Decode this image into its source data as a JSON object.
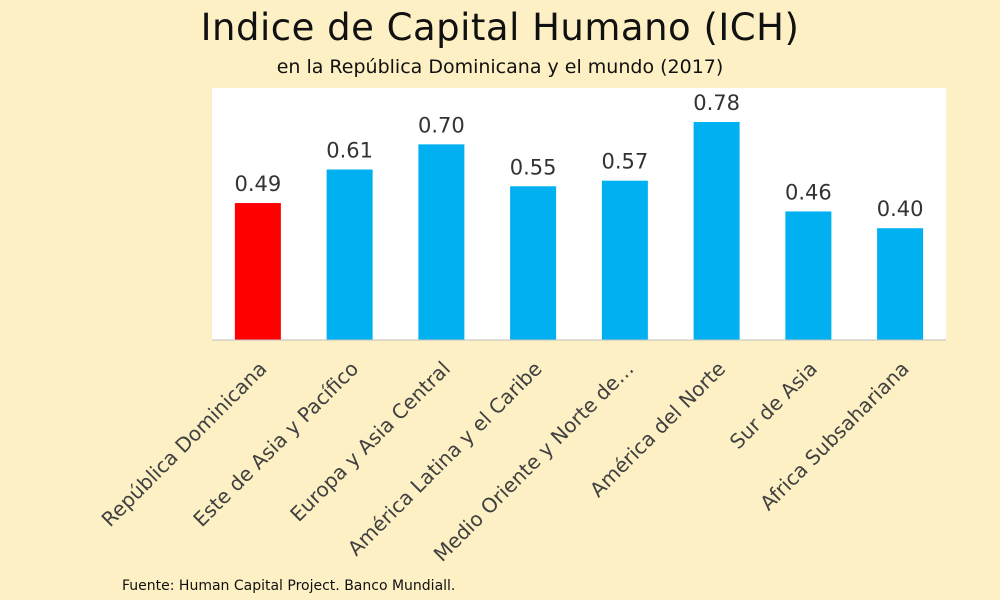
{
  "title": "Indice de Capital Humano (ICH)",
  "subtitle": "en la República Dominicana y el mundo (2017)",
  "source": "Fuente: Human Capital Project. Banco Mundiall.",
  "colors": {
    "highlight": "#ff0000",
    "bar": "#00b0f0",
    "plot_bg": "#ffffff",
    "page_bg": "#fdf0c4"
  },
  "chart_data": {
    "type": "bar",
    "title": "Indice de Capital Humano (ICH)",
    "subtitle": "en la República Dominicana y el mundo (2017)",
    "categories": [
      "República Dominicana",
      "Este de Asia y Pacífico",
      "Europa y Asia Central",
      "América Latina y el Caribe",
      "Medio Oriente y Norte de…",
      "América del Norte",
      "Sur de Asia",
      "Africa Subsahariana"
    ],
    "values": [
      0.49,
      0.61,
      0.7,
      0.55,
      0.57,
      0.78,
      0.46,
      0.4
    ],
    "value_labels": [
      "0.49",
      "0.61",
      "0.70",
      "0.55",
      "0.57",
      "0.78",
      "0.46",
      "0.40"
    ],
    "highlight_index": 0,
    "ylim": [
      0,
      0.8
    ],
    "grid": false,
    "legend": "none",
    "xlabel": "",
    "ylabel": ""
  }
}
